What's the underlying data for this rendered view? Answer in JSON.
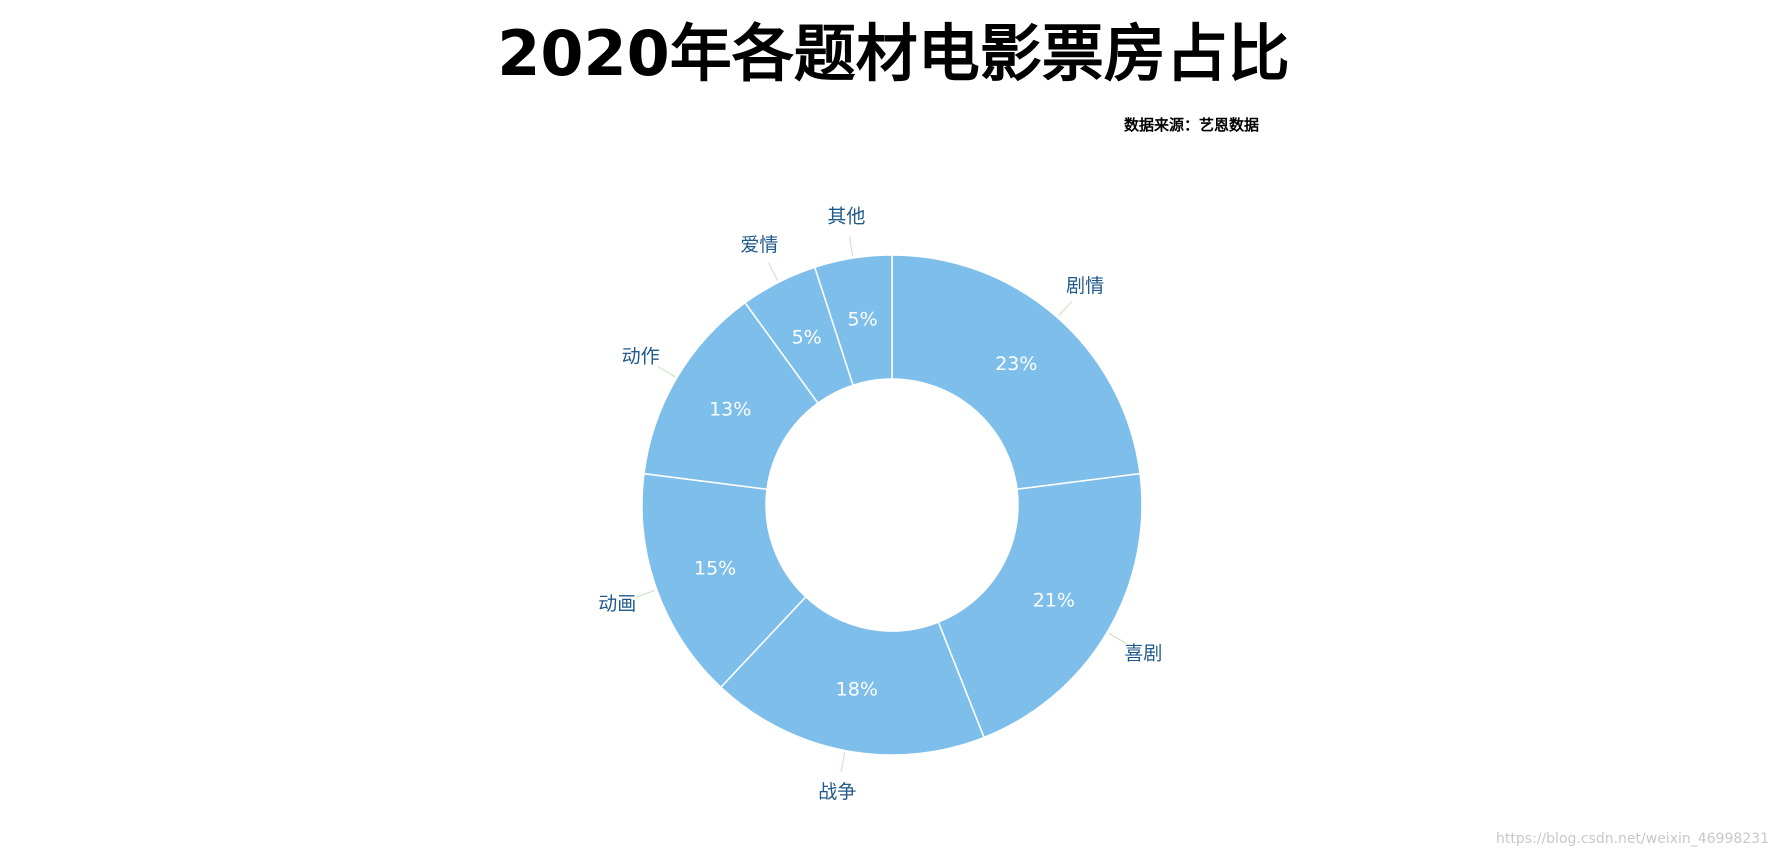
{
  "chart_data": {
    "type": "pie",
    "variant": "donut",
    "title": "2020年各题材电影票房占比",
    "subtitle": "数据来源：艺恩数据",
    "categories": [
      "剧情",
      "喜剧",
      "战争",
      "动画",
      "动作",
      "爱情",
      "其他"
    ],
    "values": [
      23,
      21,
      18,
      15,
      13,
      5,
      5
    ],
    "value_labels": [
      "23%",
      "21%",
      "18%",
      "15%",
      "13%",
      "5%",
      "5%"
    ],
    "unit": "%",
    "start": "12 o'clock, clockwise",
    "colors": {
      "slice": "#7dbfea",
      "slice_border": "#ffffff",
      "value_text": "#ffffff",
      "category_text": "#1f5a8a",
      "leader_line": "#cde6c8"
    }
  },
  "watermark": "https://blog.csdn.net/weixin_46998231"
}
